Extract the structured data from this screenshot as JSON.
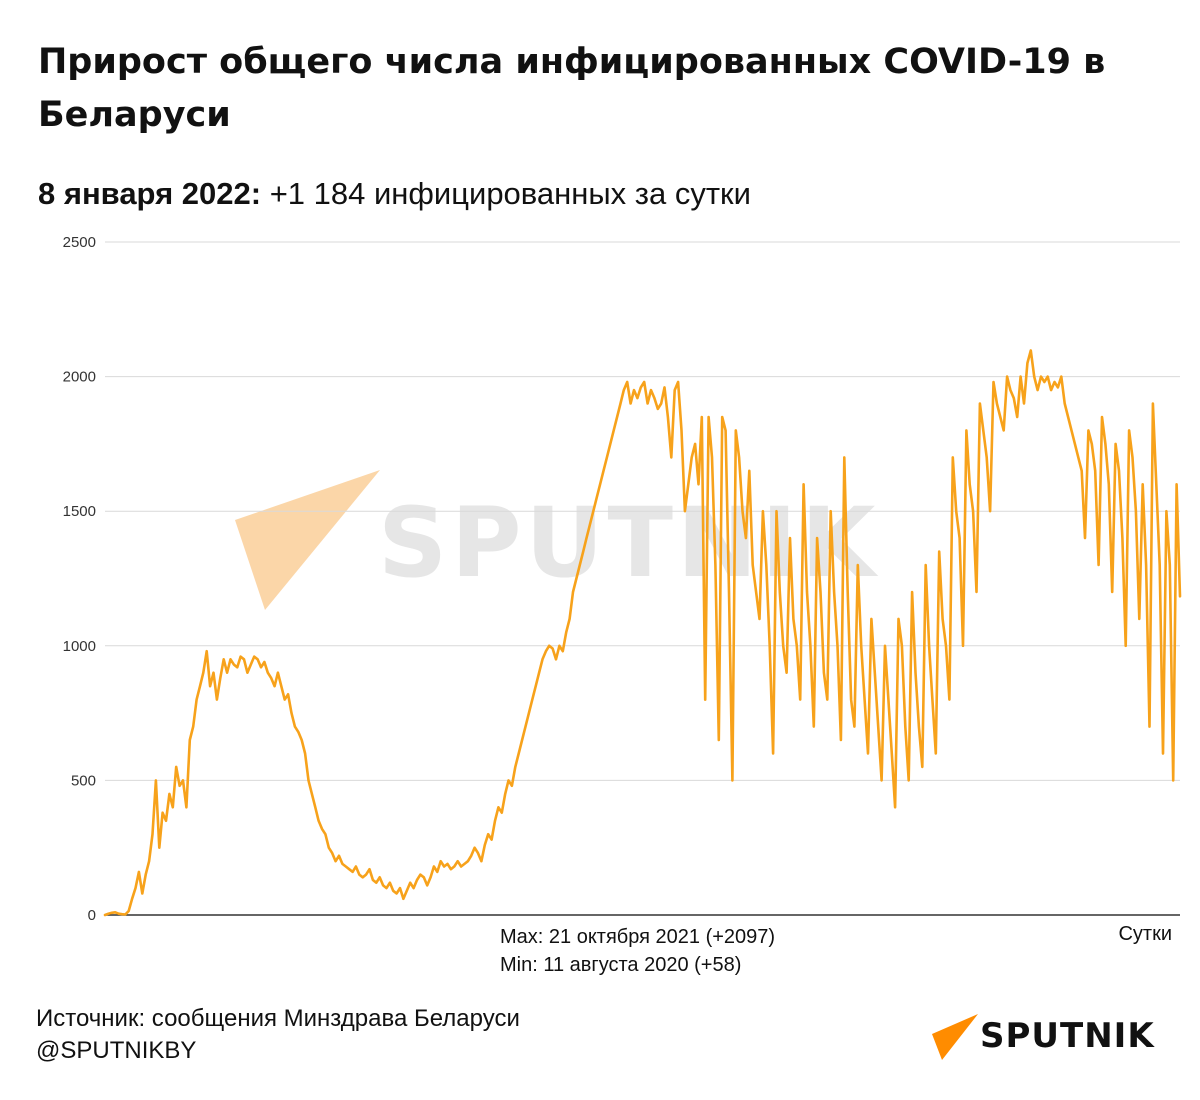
{
  "header": {
    "title": "Прирост общего числа инфицированных COVID-19 в Беларуси",
    "date_label": "8 января 2022:",
    "date_text": " +1 184 инфицированных за сутки"
  },
  "notes": {
    "max": "Max: 21 октября 2021 (+2097)",
    "min": "Min: 11 августа 2020 (+58)"
  },
  "footer": {
    "source": "Источник: сообщения Минздрава Беларуси",
    "handle": "@SPUTNIKBY",
    "logo_text": "SPUTNIK"
  },
  "watermark": {
    "text": "SPUTNIK"
  },
  "colors": {
    "line": "#f7a21b",
    "grid": "#d9d9d9",
    "logo": "#ff8c00"
  },
  "chart_data": {
    "type": "line",
    "title": "Прирост общего числа инфицированных COVID-19 в Беларуси",
    "xlabel": "Сутки",
    "ylabel": "",
    "ylim": [
      0,
      2500
    ],
    "yticks": [
      0,
      500,
      1000,
      1500,
      2000,
      2500
    ],
    "grid": true,
    "series": [
      {
        "values": [
          0,
          5,
          8,
          10,
          5,
          3,
          2,
          15,
          60,
          100,
          160,
          80,
          150,
          200,
          300,
          500,
          250,
          380,
          350,
          450,
          400,
          550,
          480,
          500,
          400,
          650,
          700,
          800,
          850,
          900,
          980,
          850,
          900,
          800,
          880,
          950,
          900,
          950,
          930,
          920,
          960,
          950,
          900,
          930,
          960,
          950,
          920,
          940,
          900,
          880,
          850,
          900,
          850,
          800,
          820,
          750,
          700,
          680,
          650,
          600,
          500,
          450,
          400,
          350,
          320,
          300,
          250,
          230,
          200,
          220,
          190,
          180,
          170,
          160,
          180,
          150,
          140,
          150,
          170,
          130,
          120,
          140,
          110,
          100,
          120,
          90,
          80,
          100,
          60,
          90,
          120,
          100,
          130,
          150,
          140,
          110,
          140,
          180,
          160,
          200,
          180,
          190,
          170,
          180,
          200,
          180,
          190,
          200,
          220,
          250,
          230,
          200,
          260,
          300,
          280,
          350,
          400,
          380,
          450,
          500,
          480,
          550,
          600,
          650,
          700,
          750,
          800,
          850,
          900,
          950,
          980,
          1000,
          990,
          950,
          1000,
          980,
          1050,
          1100,
          1200,
          1250,
          1300,
          1350,
          1400,
          1450,
          1500,
          1550,
          1600,
          1650,
          1700,
          1750,
          1800,
          1850,
          1900,
          1950,
          1980,
          1900,
          1950,
          1920,
          1960,
          1980,
          1900,
          1950,
          1920,
          1880,
          1900,
          1960,
          1850,
          1700,
          1950,
          1980,
          1800,
          1500,
          1600,
          1700,
          1750,
          1600,
          1850,
          800,
          1850,
          1700,
          1300,
          650,
          1850,
          1800,
          1200,
          500,
          1800,
          1700,
          1500,
          1400,
          1650,
          1300,
          1200,
          1100,
          1500,
          1300,
          1000,
          600,
          1500,
          1200,
          1000,
          900,
          1400,
          1100,
          1000,
          800,
          1600,
          1200,
          1000,
          700,
          1400,
          1200,
          900,
          800,
          1500,
          1200,
          1000,
          650,
          1700,
          1200,
          800,
          700,
          1300,
          1000,
          800,
          600,
          1100,
          900,
          700,
          500,
          1000,
          800,
          600,
          400,
          1100,
          1000,
          700,
          500,
          1200,
          900,
          700,
          550,
          1300,
          1000,
          800,
          600,
          1350,
          1100,
          1000,
          800,
          1700,
          1500,
          1400,
          1000,
          1800,
          1600,
          1500,
          1200,
          1900,
          1800,
          1700,
          1500,
          1980,
          1900,
          1850,
          1800,
          2000,
          1950,
          1920,
          1850,
          2000,
          1900,
          2050,
          2097,
          2000,
          1950,
          2000,
          1980,
          2000,
          1950,
          1980,
          1960,
          2000,
          1900,
          1850,
          1800,
          1750,
          1700,
          1650,
          1400,
          1800,
          1750,
          1650,
          1300,
          1850,
          1750,
          1600,
          1200,
          1750,
          1650,
          1400,
          1000,
          1800,
          1700,
          1500,
          1100,
          1600,
          1300,
          700,
          1900,
          1600,
          1300,
          600,
          1500,
          1300,
          500,
          1600,
          1184
        ]
      }
    ]
  }
}
